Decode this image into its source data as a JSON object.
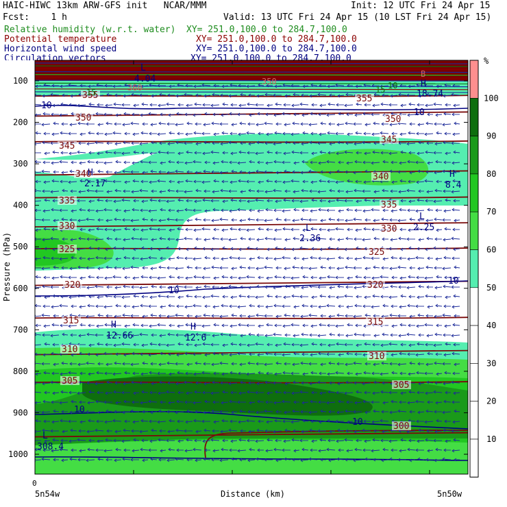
{
  "header": {
    "title": "HAIC-HIWC 13km ARW-GFS init   NCAR/MMM",
    "init": "Init: 12 UTC Fri 24 Apr 15",
    "fcst": "Fcst:    1 h",
    "valid": "Valid: 13 UTC Fri 24 Apr 15 (10 LST Fri 24 Apr 15)",
    "fields": [
      {
        "name": "Relative humidity (w.r.t. water)",
        "xy": "XY= 251.0,100.0 to 284.7,100.0"
      },
      {
        "name": "Potential temperature",
        "xy": "XY= 251.0,100.0 to 284.7,100.0"
      },
      {
        "name": "Horizontal wind speed",
        "xy": "XY= 251.0,100.0 to 284.7,100.0"
      },
      {
        "name": "Circulation vectors",
        "xy": "XY= 251.0,100.0 to 284.7,100.0"
      }
    ]
  },
  "colors": {
    "rh_levels": [
      "#ffffff",
      "#ffffff",
      "#ffffff",
      "#ffffff",
      "#ffffff",
      "#55eeb0",
      "#44dd44",
      "#22c722",
      "#1a9a1a",
      "#0e6e0e",
      "#ff8f8f"
    ],
    "theta": "#7a0a0a",
    "wind": "#000080",
    "vector": "#1c2a99",
    "top_band": "#7a0000"
  },
  "chart_data": {
    "type": "cross-section",
    "x_axis": {
      "label": "Distance (km)",
      "zero_tick": "0",
      "left_label": "5n54w",
      "right_label": "5n50w"
    },
    "y_axis": {
      "label": "Pressure (hPa)",
      "ticks": [
        "100",
        "200",
        "300",
        "400",
        "500",
        "600",
        "700",
        "800",
        "900",
        "1000"
      ]
    },
    "colorbar": {
      "unit": "%",
      "ticks": [
        "100",
        "90",
        "80",
        "70",
        "60",
        "50",
        "40",
        "30",
        "20",
        "10"
      ]
    },
    "theta_contours": [
      {
        "label": "355",
        "p": 140
      },
      {
        "label": "350",
        "p": 180
      },
      {
        "label": "345",
        "p": 250
      },
      {
        "label": "340",
        "p": 322
      },
      {
        "label": "335",
        "p": 385
      },
      {
        "label": "330",
        "p": 447
      },
      {
        "label": "325",
        "p": 508
      },
      {
        "label": "320",
        "p": 588
      },
      {
        "label": "315",
        "p": 675
      },
      {
        "label": "310",
        "p": 755
      },
      {
        "label": "305",
        "p": 830
      },
      {
        "label": "300",
        "p": 953
      }
    ],
    "wind_labels": [
      "10",
      "10",
      "10",
      "10",
      "10",
      "10"
    ],
    "extrema": [
      {
        "type": "H",
        "value": "2.17"
      },
      {
        "type": "H",
        "value": "8.4"
      },
      {
        "type": "L",
        "value": "2.36"
      },
      {
        "type": "L",
        "value": "2.25"
      },
      {
        "type": "H",
        "value": "12.66"
      },
      {
        "type": "H",
        "value": "12.6"
      },
      {
        "type": "L",
        "value": "308.4"
      },
      {
        "type": "H",
        "value": "18.74"
      },
      {
        "type": "L",
        "value": "4.04"
      }
    ],
    "top_labels": [
      "15",
      "15",
      "10",
      "360",
      "350",
      "B"
    ]
  }
}
